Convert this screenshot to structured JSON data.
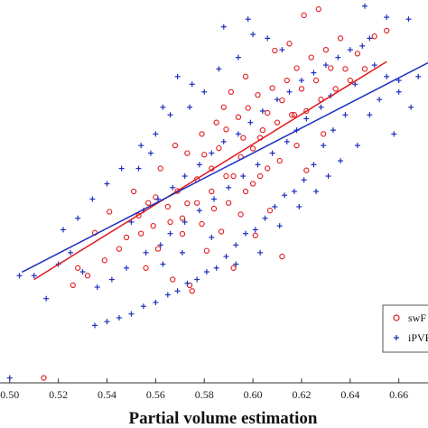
{
  "chart_data": {
    "type": "scatter",
    "xlabel": "Partial volume estimation",
    "ylabel": "",
    "xlim": [
      0.496,
      0.672
    ],
    "ylim": [
      0.0,
      1.0
    ],
    "xticks": [
      "0.50",
      "0.52",
      "0.54",
      "0.56",
      "0.58",
      "0.60",
      "0.62",
      "0.64",
      "0.66"
    ],
    "grid": false,
    "legend_position": "right",
    "series": [
      {
        "name": "swF",
        "marker": "circle",
        "color": "#e0191e",
        "fit": [
          [
            0.51,
            0.27
          ],
          [
            0.655,
            0.839
          ]
        ],
        "points": [
          [
            0.514,
            0.013
          ],
          [
            0.627,
            0.976
          ],
          [
            0.553,
            0.437
          ],
          [
            0.56,
            0.485
          ],
          [
            0.566,
            0.42
          ],
          [
            0.569,
            0.501
          ],
          [
            0.573,
            0.469
          ],
          [
            0.577,
            0.532
          ],
          [
            0.58,
            0.596
          ],
          [
            0.583,
            0.56
          ],
          [
            0.586,
            0.613
          ],
          [
            0.589,
            0.662
          ],
          [
            0.592,
            0.54
          ],
          [
            0.594,
            0.694
          ],
          [
            0.596,
            0.64
          ],
          [
            0.598,
            0.718
          ],
          [
            0.6,
            0.612
          ],
          [
            0.602,
            0.752
          ],
          [
            0.604,
            0.66
          ],
          [
            0.606,
            0.705
          ],
          [
            0.608,
            0.77
          ],
          [
            0.61,
            0.68
          ],
          [
            0.612,
            0.738
          ],
          [
            0.614,
            0.79
          ],
          [
            0.616,
            0.7
          ],
          [
            0.618,
            0.822
          ],
          [
            0.62,
            0.768
          ],
          [
            0.622,
            0.71
          ],
          [
            0.624,
            0.85
          ],
          [
            0.626,
            0.79
          ],
          [
            0.628,
            0.74
          ],
          [
            0.63,
            0.87
          ],
          [
            0.632,
            0.822
          ],
          [
            0.634,
            0.768
          ],
          [
            0.636,
            0.9
          ],
          [
            0.638,
            0.82
          ],
          [
            0.64,
            0.79
          ],
          [
            0.643,
            0.86
          ],
          [
            0.646,
            0.82
          ],
          [
            0.65,
            0.905
          ],
          [
            0.655,
            0.92
          ],
          [
            0.548,
            0.38
          ],
          [
            0.541,
            0.447
          ],
          [
            0.535,
            0.392
          ],
          [
            0.528,
            0.3
          ],
          [
            0.526,
            0.255
          ],
          [
            0.556,
            0.3
          ],
          [
            0.561,
            0.35
          ],
          [
            0.571,
            0.389
          ],
          [
            0.575,
            0.24
          ],
          [
            0.579,
            0.415
          ],
          [
            0.581,
            0.345
          ],
          [
            0.584,
            0.455
          ],
          [
            0.587,
            0.395
          ],
          [
            0.59,
            0.47
          ],
          [
            0.595,
            0.44
          ],
          [
            0.597,
            0.5
          ],
          [
            0.601,
            0.385
          ],
          [
            0.603,
            0.54
          ],
          [
            0.607,
            0.45
          ],
          [
            0.611,
            0.58
          ],
          [
            0.585,
            0.68
          ],
          [
            0.588,
            0.72
          ],
          [
            0.591,
            0.76
          ],
          [
            0.597,
            0.8
          ],
          [
            0.609,
            0.868
          ],
          [
            0.615,
            0.886
          ],
          [
            0.621,
            0.96
          ],
          [
            0.574,
            0.255
          ],
          [
            0.567,
            0.27
          ],
          [
            0.592,
            0.3
          ],
          [
            0.612,
            0.33
          ],
          [
            0.6,
            0.52
          ],
          [
            0.606,
            0.56
          ],
          [
            0.618,
            0.62
          ],
          [
            0.629,
            0.65
          ],
          [
            0.579,
            0.65
          ],
          [
            0.573,
            0.6
          ],
          [
            0.568,
            0.62
          ],
          [
            0.562,
            0.56
          ],
          [
            0.557,
            0.47
          ],
          [
            0.551,
            0.5
          ],
          [
            0.545,
            0.35
          ],
          [
            0.539,
            0.32
          ],
          [
            0.532,
            0.28
          ],
          [
            0.622,
            0.555
          ],
          [
            0.617,
            0.7
          ],
          [
            0.603,
            0.64
          ],
          [
            0.595,
            0.59
          ],
          [
            0.589,
            0.54
          ],
          [
            0.583,
            0.5
          ],
          [
            0.577,
            0.47
          ],
          [
            0.571,
            0.43
          ],
          [
            0.565,
            0.46
          ],
          [
            0.559,
            0.41
          ],
          [
            0.554,
            0.39
          ]
        ]
      },
      {
        "name": "iPVE",
        "marker": "plus",
        "color": "#1f2fbd",
        "fit": [
          [
            0.505,
            0.289
          ],
          [
            0.672,
            0.836
          ]
        ],
        "points": [
          [
            0.5,
            0.013
          ],
          [
            0.504,
            0.28
          ],
          [
            0.646,
            0.984
          ],
          [
            0.664,
            0.95
          ],
          [
            0.655,
            0.955
          ],
          [
            0.648,
            0.9
          ],
          [
            0.66,
            0.79
          ],
          [
            0.665,
            0.72
          ],
          [
            0.642,
            0.78
          ],
          [
            0.638,
            0.7
          ],
          [
            0.633,
            0.66
          ],
          [
            0.629,
            0.62
          ],
          [
            0.625,
            0.57
          ],
          [
            0.621,
            0.53
          ],
          [
            0.617,
            0.5
          ],
          [
            0.613,
            0.49
          ],
          [
            0.609,
            0.46
          ],
          [
            0.605,
            0.43
          ],
          [
            0.601,
            0.4
          ],
          [
            0.597,
            0.39
          ],
          [
            0.593,
            0.36
          ],
          [
            0.589,
            0.33
          ],
          [
            0.585,
            0.3
          ],
          [
            0.581,
            0.29
          ],
          [
            0.577,
            0.27
          ],
          [
            0.573,
            0.26
          ],
          [
            0.569,
            0.24
          ],
          [
            0.565,
            0.23
          ],
          [
            0.56,
            0.21
          ],
          [
            0.555,
            0.2
          ],
          [
            0.55,
            0.18
          ],
          [
            0.545,
            0.17
          ],
          [
            0.54,
            0.16
          ],
          [
            0.535,
            0.15
          ],
          [
            0.53,
            0.29
          ],
          [
            0.525,
            0.34
          ],
          [
            0.52,
            0.31
          ],
          [
            0.515,
            0.22
          ],
          [
            0.51,
            0.28
          ],
          [
            0.55,
            0.42
          ],
          [
            0.555,
            0.45
          ],
          [
            0.561,
            0.48
          ],
          [
            0.567,
            0.51
          ],
          [
            0.572,
            0.54
          ],
          [
            0.578,
            0.57
          ],
          [
            0.583,
            0.6
          ],
          [
            0.588,
            0.63
          ],
          [
            0.594,
            0.65
          ],
          [
            0.599,
            0.68
          ],
          [
            0.604,
            0.71
          ],
          [
            0.61,
            0.74
          ],
          [
            0.615,
            0.76
          ],
          [
            0.62,
            0.79
          ],
          [
            0.625,
            0.81
          ],
          [
            0.63,
            0.83
          ],
          [
            0.635,
            0.85
          ],
          [
            0.64,
            0.87
          ],
          [
            0.645,
            0.88
          ],
          [
            0.65,
            0.83
          ],
          [
            0.655,
            0.8
          ],
          [
            0.66,
            0.76
          ],
          [
            0.668,
            0.8
          ],
          [
            0.612,
            0.87
          ],
          [
            0.606,
            0.9
          ],
          [
            0.6,
            0.91
          ],
          [
            0.594,
            0.85
          ],
          [
            0.586,
            0.82
          ],
          [
            0.58,
            0.76
          ],
          [
            0.574,
            0.72
          ],
          [
            0.566,
            0.7
          ],
          [
            0.56,
            0.65
          ],
          [
            0.554,
            0.62
          ],
          [
            0.546,
            0.56
          ],
          [
            0.54,
            0.52
          ],
          [
            0.534,
            0.48
          ],
          [
            0.528,
            0.43
          ],
          [
            0.522,
            0.4
          ],
          [
            0.628,
            0.72
          ],
          [
            0.632,
            0.75
          ],
          [
            0.622,
            0.69
          ],
          [
            0.618,
            0.66
          ],
          [
            0.614,
            0.63
          ],
          [
            0.608,
            0.6
          ],
          [
            0.602,
            0.57
          ],
          [
            0.596,
            0.54
          ],
          [
            0.59,
            0.51
          ],
          [
            0.584,
            0.48
          ],
          [
            0.578,
            0.45
          ],
          [
            0.572,
            0.42
          ],
          [
            0.566,
            0.39
          ],
          [
            0.562,
            0.36
          ],
          [
            0.556,
            0.34
          ],
          [
            0.548,
            0.3
          ],
          [
            0.542,
            0.27
          ],
          [
            0.536,
            0.25
          ],
          [
            0.643,
            0.62
          ],
          [
            0.648,
            0.7
          ],
          [
            0.652,
            0.74
          ],
          [
            0.658,
            0.65
          ],
          [
            0.636,
            0.58
          ],
          [
            0.631,
            0.54
          ],
          [
            0.626,
            0.5
          ],
          [
            0.619,
            0.46
          ],
          [
            0.611,
            0.41
          ],
          [
            0.603,
            0.34
          ],
          [
            0.593,
            0.31
          ],
          [
            0.583,
            0.38
          ],
          [
            0.571,
            0.34
          ],
          [
            0.563,
            0.31
          ],
          [
            0.569,
            0.8
          ],
          [
            0.575,
            0.78
          ],
          [
            0.563,
            0.72
          ],
          [
            0.553,
            0.56
          ],
          [
            0.558,
            0.6
          ],
          [
            0.588,
            0.93
          ],
          [
            0.598,
            0.95
          ]
        ]
      }
    ]
  }
}
